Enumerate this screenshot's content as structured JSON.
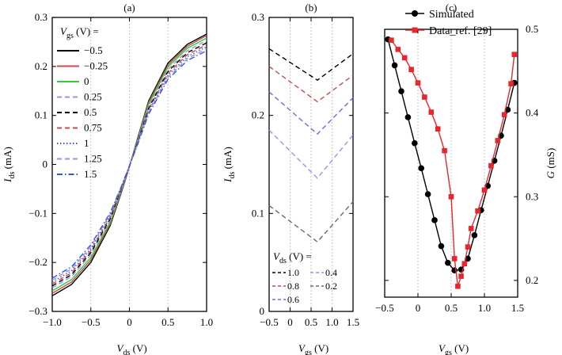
{
  "panels": [
    {
      "title": "(a)",
      "xlabel": "V",
      "xlabel_sub": "ds",
      "xlabel_unit": " (V)",
      "ylabel": "I",
      "ylabel_sub": "ds",
      "ylabel_unit": " (mA)",
      "xlim": [
        -1.0,
        1.0
      ],
      "ylim": [
        -0.3,
        0.3
      ],
      "xticks": [
        -1.0,
        -0.5,
        0,
        0.5,
        1.0
      ],
      "xtick_labels": [
        "−1.0",
        "−0.5",
        "0",
        "0.5",
        "1.0"
      ],
      "yticks": [
        -0.3,
        -0.2,
        -0.1,
        0,
        0.1,
        0.2,
        0.3
      ],
      "ytick_labels": [
        "−0.3",
        "−0.2",
        "−0.1",
        "0",
        "0.1",
        "0.2",
        "0.3"
      ],
      "vgrid": [
        -0.5,
        0,
        0.5
      ],
      "legend_title": "V",
      "legend_title_sub": "gs",
      "legend_title_unit": " (V) =",
      "legend_position": "upper-left"
    },
    {
      "title": "(b)",
      "xlabel": "V",
      "xlabel_sub": "gs",
      "xlabel_unit": " (V)",
      "ylabel": "I",
      "ylabel_sub": "ds",
      "ylabel_unit": " (mA)",
      "xlim": [
        -0.5,
        1.5
      ],
      "ylim": [
        0,
        0.3
      ],
      "xticks": [
        -0.5,
        0,
        0.5,
        1.0,
        1.5
      ],
      "xtick_labels": [
        "−0.5",
        "0",
        "0.5",
        "1.0",
        "1.5"
      ],
      "yticks": [
        0,
        0.1,
        0.2,
        0.3
      ],
      "ytick_labels": [
        "0",
        "0.1",
        "0.2",
        "0.3"
      ],
      "vgrid": [
        0,
        0.5,
        1.0
      ],
      "legend_title": "V",
      "legend_title_sub": "ds",
      "legend_title_unit": " (V) =",
      "legend_position": "lower-left"
    },
    {
      "title": "(c)",
      "xlabel": "V",
      "xlabel_sub": "gs",
      "xlabel_unit": " (V)",
      "ylabel": "G",
      "ylabel_sub": "",
      "ylabel_unit": " (mS)",
      "xlim": [
        -0.5,
        1.5
      ],
      "ylim": [
        0.18,
        0.5
      ],
      "xticks": [
        -0.5,
        0,
        0.5,
        1.0,
        1.5
      ],
      "xtick_labels": [
        "−0.5",
        "0",
        "0.5",
        "1.0",
        "1.5"
      ],
      "yticks": [
        0.2,
        0.3,
        0.4,
        0.5
      ],
      "ytick_labels": [
        "0.2",
        "0.3",
        "0.4",
        "0.5"
      ],
      "vgrid": [
        0,
        0.5,
        1.0
      ],
      "legend_position": "top-right"
    }
  ],
  "chart_data": [
    {
      "type": "line",
      "panel": "(a)",
      "x": [
        -1.0,
        -0.75,
        -0.5,
        -0.25,
        -0.1,
        0,
        0.1,
        0.25,
        0.5,
        0.75,
        1.0
      ],
      "series": [
        {
          "name": "−0.5",
          "color": "#000000",
          "dash": "solid",
          "values": [
            -0.268,
            -0.245,
            -0.2,
            -0.125,
            -0.055,
            -0.005,
            0.05,
            0.13,
            0.207,
            0.245,
            0.266
          ]
        },
        {
          "name": "−0.25",
          "color": "#c0504d",
          "dash": "solid",
          "values": [
            -0.263,
            -0.24,
            -0.195,
            -0.122,
            -0.053,
            -0.004,
            0.048,
            0.127,
            0.203,
            0.241,
            0.263
          ]
        },
        {
          "name": "0",
          "color": "#33cc33",
          "dash": "solid",
          "values": [
            -0.258,
            -0.235,
            -0.19,
            -0.118,
            -0.051,
            -0.004,
            0.046,
            0.123,
            0.199,
            0.237,
            0.258
          ]
        },
        {
          "name": "0.25",
          "color": "#9f8fef",
          "dash": "dashed",
          "values": [
            -0.252,
            -0.229,
            -0.184,
            -0.114,
            -0.049,
            -0.004,
            0.044,
            0.119,
            0.194,
            0.232,
            0.253
          ]
        },
        {
          "name": "0.5",
          "color": "#000000",
          "dash": "dashed",
          "values": [
            -0.248,
            -0.225,
            -0.18,
            -0.111,
            -0.047,
            -0.003,
            0.042,
            0.115,
            0.19,
            0.228,
            0.248
          ]
        },
        {
          "name": "0.75",
          "color": "#c0504d",
          "dash": "dashed",
          "values": [
            -0.244,
            -0.221,
            -0.176,
            -0.108,
            -0.046,
            -0.003,
            0.041,
            0.112,
            0.186,
            0.224,
            0.244
          ]
        },
        {
          "name": "1",
          "color": "#3355dd",
          "dash": "dotted",
          "values": [
            -0.24,
            -0.217,
            -0.172,
            -0.105,
            -0.045,
            -0.003,
            0.04,
            0.109,
            0.182,
            0.22,
            0.24
          ]
        },
        {
          "name": "1.25",
          "color": "#9f8fef",
          "dash": "dashed",
          "values": [
            -0.236,
            -0.213,
            -0.168,
            -0.102,
            -0.044,
            -0.003,
            0.039,
            0.106,
            0.178,
            0.216,
            0.236
          ]
        },
        {
          "name": "1.5",
          "color": "#3355dd",
          "dash": "dashdot",
          "values": [
            -0.232,
            -0.209,
            -0.164,
            -0.099,
            -0.043,
            -0.003,
            0.038,
            0.103,
            0.174,
            0.212,
            0.232
          ]
        }
      ]
    },
    {
      "type": "line",
      "panel": "(b)",
      "x": [
        -0.5,
        0.65,
        1.5
      ],
      "series": [
        {
          "name": "1.0",
          "color": "#000000",
          "dash": "dashed",
          "values": [
            0.268,
            0.236,
            0.263
          ]
        },
        {
          "name": "0.8",
          "color": "#c0504d",
          "dash": "dashed",
          "values": [
            0.25,
            0.214,
            0.241
          ]
        },
        {
          "name": "0.6",
          "color": "#6a6ae8",
          "dash": "dashed",
          "values": [
            0.224,
            0.181,
            0.218
          ]
        },
        {
          "name": "0.4",
          "color": "#9f8fef",
          "dash": "dashed",
          "values": [
            0.185,
            0.136,
            0.18
          ]
        },
        {
          "name": "0.2",
          "color": "#607060",
          "dash": "dashed",
          "values": [
            0.108,
            0.071,
            0.112
          ]
        }
      ]
    },
    {
      "type": "line",
      "panel": "(c)",
      "series": [
        {
          "name": "Simulated",
          "color": "#000000",
          "marker": "circle",
          "x": [
            -0.45,
            -0.35,
            -0.25,
            -0.15,
            -0.05,
            0.05,
            0.15,
            0.25,
            0.35,
            0.45,
            0.55,
            0.65,
            0.75,
            0.85,
            0.95,
            1.05,
            1.15,
            1.25,
            1.35,
            1.45
          ],
          "y": [
            0.488,
            0.457,
            0.426,
            0.395,
            0.364,
            0.334,
            0.303,
            0.272,
            0.241,
            0.221,
            0.212,
            0.213,
            0.226,
            0.254,
            0.284,
            0.313,
            0.343,
            0.373,
            0.404,
            0.436
          ]
        },
        {
          "name": "Data_ref. [29]",
          "color": "#e8262d",
          "marker": "square",
          "x": [
            -0.4,
            -0.3,
            -0.2,
            -0.1,
            0.0,
            0.1,
            0.2,
            0.3,
            0.4,
            0.5,
            0.55,
            0.6,
            0.65,
            0.7,
            0.75,
            0.8,
            0.9,
            1.0,
            1.1,
            1.2,
            1.3,
            1.4,
            1.45
          ],
          "y": [
            0.487,
            0.476,
            0.466,
            0.452,
            0.436,
            0.419,
            0.401,
            0.381,
            0.355,
            0.3,
            0.226,
            0.193,
            0.205,
            0.22,
            0.24,
            0.262,
            0.283,
            0.308,
            0.337,
            0.367,
            0.398,
            0.435,
            0.47
          ]
        }
      ]
    }
  ]
}
